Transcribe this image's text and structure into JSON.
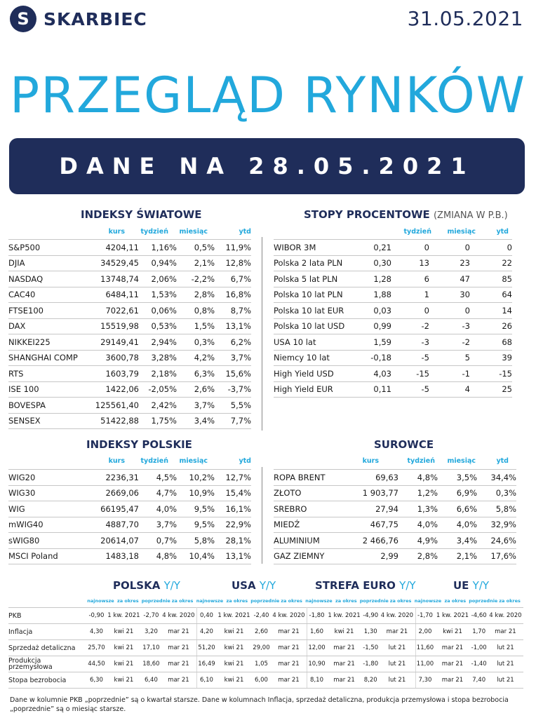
{
  "brand": {
    "logo_letter": "S",
    "name": "SKARBIEC"
  },
  "date": "31.05.2021",
  "title": "PRZEGLĄD RYNKÓW",
  "banner": "DANE NA 28.05.2021",
  "world": {
    "title": "INDEKSY ŚWIATOWE",
    "cols": [
      "kurs",
      "tydzień",
      "miesiąc",
      "ytd"
    ],
    "rows": [
      [
        "S&P500",
        "4204,11",
        "1,16%",
        "0,5%",
        "11,9%"
      ],
      [
        "DJIA",
        "34529,45",
        "0,94%",
        "2,1%",
        "12,8%"
      ],
      [
        "NASDAQ",
        "13748,74",
        "2,06%",
        "-2,2%",
        "6,7%"
      ],
      [
        "CAC40",
        "6484,11",
        "1,53%",
        "2,8%",
        "16,8%"
      ],
      [
        "FTSE100",
        "7022,61",
        "0,06%",
        "0,8%",
        "8,7%"
      ],
      [
        "DAX",
        "15519,98",
        "0,53%",
        "1,5%",
        "13,1%"
      ],
      [
        "NIKKEI225",
        "29149,41",
        "2,94%",
        "0,3%",
        "6,2%"
      ],
      [
        "SHANGHAI COMP",
        "3600,78",
        "3,28%",
        "4,2%",
        "3,7%"
      ],
      [
        "RTS",
        "1603,79",
        "2,18%",
        "6,3%",
        "15,6%"
      ],
      [
        "ISE 100",
        "1422,06",
        "-2,05%",
        "2,6%",
        "-3,7%"
      ],
      [
        "BOVESPA",
        "125561,40",
        "2,42%",
        "3,7%",
        "5,5%"
      ],
      [
        "SENSEX",
        "51422,88",
        "1,75%",
        "3,4%",
        "7,7%"
      ]
    ]
  },
  "rates": {
    "title": "STOPY PROCENTOWE",
    "subtitle": "(ZMIANA W P.B.)",
    "cols": [
      "tydzień",
      "miesiąc",
      "ytd"
    ],
    "rows": [
      [
        "WIBOR 3M",
        "0,21",
        "0",
        "0",
        "0"
      ],
      [
        "Polska 2 lata PLN",
        "0,30",
        "13",
        "23",
        "22"
      ],
      [
        "Polska 5 lat PLN",
        "1,28",
        "6",
        "47",
        "85"
      ],
      [
        "Polska 10 lat PLN",
        "1,88",
        "1",
        "30",
        "64"
      ],
      [
        "Polska 10 lat EUR",
        "0,03",
        "0",
        "0",
        "14"
      ],
      [
        "Polska 10 lat USD",
        "0,99",
        "-2",
        "-3",
        "26"
      ],
      [
        "USA 10 lat",
        "1,59",
        "-3",
        "-2",
        "68"
      ],
      [
        "Niemcy 10 lat",
        "-0,18",
        "-5",
        "5",
        "39"
      ],
      [
        "High Yield USD",
        "4,03",
        "-15",
        "-1",
        "-15"
      ],
      [
        "High Yield EUR",
        "0,11",
        "-5",
        "4",
        "25"
      ]
    ]
  },
  "polish": {
    "title": "INDEKSY POLSKIE",
    "cols": [
      "kurs",
      "tydzień",
      "miesiąc",
      "ytd"
    ],
    "rows": [
      [
        "WIG20",
        "2236,31",
        "4,5%",
        "10,2%",
        "12,7%"
      ],
      [
        "WIG30",
        "2669,06",
        "4,7%",
        "10,9%",
        "15,4%"
      ],
      [
        "WIG",
        "66195,47",
        "4,0%",
        "9,5%",
        "16,1%"
      ],
      [
        "mWIG40",
        "4887,70",
        "3,7%",
        "9,5%",
        "22,9%"
      ],
      [
        "sWIG80",
        "20614,07",
        "0,7%",
        "5,8%",
        "28,1%"
      ],
      [
        "MSCI Poland",
        "1483,18",
        "4,8%",
        "10,4%",
        "13,1%"
      ]
    ]
  },
  "commodities": {
    "title": "SUROWCE",
    "cols": [
      "kurs",
      "tydzień",
      "miesiąc",
      "ytd"
    ],
    "rows": [
      [
        "ROPA BRENT",
        "69,63",
        "4,8%",
        "3,5%",
        "34,4%"
      ],
      [
        "ZŁOTO",
        "1 903,77",
        "1,2%",
        "6,9%",
        "0,3%"
      ],
      [
        "SREBRO",
        "27,94",
        "1,3%",
        "6,6%",
        "5,8%"
      ],
      [
        "MIEDŹ",
        "467,75",
        "4,0%",
        "4,0%",
        "32,9%"
      ],
      [
        "ALUMINIUM",
        "2 466,76",
        "4,9%",
        "3,4%",
        "24,6%"
      ],
      [
        "GAZ ZIEMNY",
        "2,99",
        "2,8%",
        "2,1%",
        "17,6%"
      ]
    ]
  },
  "macro": {
    "regions": [
      {
        "name": "POLSKA",
        "yy": "Y/Y"
      },
      {
        "name": "USA",
        "yy": "Y/Y"
      },
      {
        "name": "STREFA EURO",
        "yy": "Y/Y"
      },
      {
        "name": "UE",
        "yy": "Y/Y"
      }
    ],
    "subcols": [
      "najnowsze",
      "za okres",
      "poprzednie",
      "za okres"
    ],
    "rows": [
      {
        "label": "PKB",
        "cells": [
          "-0,90",
          "1 kw. 2021",
          "-2,70",
          "4 kw. 2020",
          "0,40",
          "1 kw. 2021",
          "-2,40",
          "4 kw. 2020",
          "-1,80",
          "1 kw. 2021",
          "-4,90",
          "4 kw. 2020",
          "-1,70",
          "1 kw. 2021",
          "-4,60",
          "4 kw. 2020"
        ]
      },
      {
        "label": "Inflacja",
        "cells": [
          "4,30",
          "kwi 21",
          "3,20",
          "mar 21",
          "4,20",
          "kwi 21",
          "2,60",
          "mar 21",
          "1,60",
          "kwi 21",
          "1,30",
          "mar 21",
          "2,00",
          "kwi 21",
          "1,70",
          "mar 21"
        ]
      },
      {
        "label": "Sprzedaż detaliczna",
        "cells": [
          "25,70",
          "kwi 21",
          "17,10",
          "mar 21",
          "51,20",
          "kwi 21",
          "29,00",
          "mar 21",
          "12,00",
          "mar 21",
          "-1,50",
          "lut 21",
          "11,60",
          "mar 21",
          "-1,00",
          "lut 21"
        ]
      },
      {
        "label": "Produkcja przemysłowa",
        "cells": [
          "44,50",
          "kwi 21",
          "18,60",
          "mar 21",
          "16,49",
          "kwi 21",
          "1,05",
          "mar 21",
          "10,90",
          "mar 21",
          "-1,80",
          "lut 21",
          "11,00",
          "mar 21",
          "-1,40",
          "lut 21"
        ]
      },
      {
        "label": "Stopa bezrobocia",
        "cells": [
          "6,30",
          "kwi 21",
          "6,40",
          "mar 21",
          "6,10",
          "kwi 21",
          "6,00",
          "mar 21",
          "8,10",
          "mar 21",
          "8,20",
          "lut 21",
          "7,30",
          "mar 21",
          "7,40",
          "lut 21"
        ]
      }
    ]
  },
  "footnote": "Dane w kolumnie PKB „poprzednie” są o kwartał starsze.  Dane w kolumnach Inflacja, sprzedaż detaliczna, produkcja przemysłowa i stopa bezrobocia „poprzednie” są o miesiąc starsze.",
  "colors": {
    "navy": "#1f2d5a",
    "accent": "#22a8dc"
  }
}
